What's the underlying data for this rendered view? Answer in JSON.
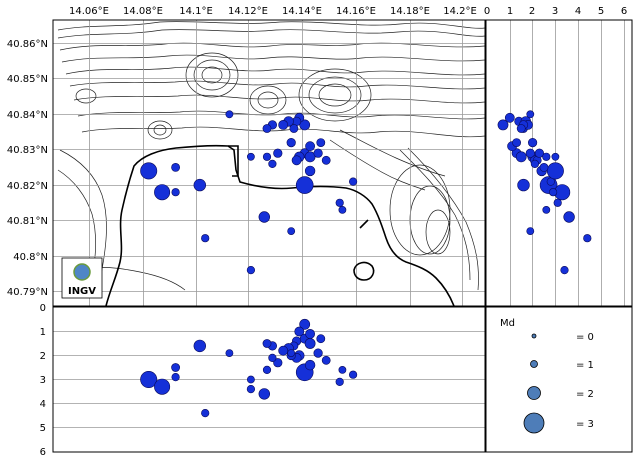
{
  "map": {
    "lon_ticks": [
      "14.06°E",
      "14.08°E",
      "14.1°E",
      "14.12°E",
      "14.14°E",
      "14.16°E",
      "14.18°E",
      "14.2°E"
    ],
    "lat_ticks": [
      "40.86°N",
      "40.85°N",
      "40.84°N",
      "40.83°N",
      "40.82°N",
      "40.81°N",
      "40.8°N",
      "40.79°N"
    ],
    "logo_text": "INGV"
  },
  "right_profile": {
    "x_ticks": [
      "0",
      "1",
      "2",
      "3",
      "4",
      "5",
      "6"
    ]
  },
  "bottom_profile": {
    "y_ticks": [
      "0",
      "1",
      "2",
      "3",
      "4",
      "5",
      "6"
    ]
  },
  "legend": {
    "title": "Md",
    "entries": [
      {
        "label": "= 0",
        "magnitude": 0
      },
      {
        "label": "= 1",
        "magnitude": 1
      },
      {
        "label": "= 2",
        "magnitude": 2
      },
      {
        "label": "= 3",
        "magnitude": 3
      }
    ]
  },
  "earthquakes": [
    {
      "lon": 14.14,
      "lat": 40.837,
      "depth": 0.7,
      "md": 1.2
    },
    {
      "lon": 14.138,
      "lat": 40.839,
      "depth": 1.0,
      "md": 1.0
    },
    {
      "lon": 14.137,
      "lat": 40.838,
      "depth": 1.4,
      "md": 0.9
    },
    {
      "lon": 14.136,
      "lat": 40.836,
      "depth": 1.6,
      "md": 0.8
    },
    {
      "lon": 14.134,
      "lat": 40.838,
      "depth": 1.7,
      "md": 1.1
    },
    {
      "lon": 14.132,
      "lat": 40.837,
      "depth": 1.8,
      "md": 1.0
    },
    {
      "lon": 14.128,
      "lat": 40.837,
      "depth": 1.6,
      "md": 0.9
    },
    {
      "lon": 14.126,
      "lat": 40.836,
      "depth": 1.5,
      "md": 0.8
    },
    {
      "lon": 14.14,
      "lat": 40.829,
      "depth": 1.3,
      "md": 1.0
    },
    {
      "lon": 14.142,
      "lat": 40.828,
      "depth": 1.5,
      "md": 1.2
    },
    {
      "lon": 14.138,
      "lat": 40.828,
      "depth": 2.0,
      "md": 1.1
    },
    {
      "lon": 14.137,
      "lat": 40.827,
      "depth": 2.1,
      "md": 1.0
    },
    {
      "lon": 14.145,
      "lat": 40.829,
      "depth": 1.9,
      "md": 0.9
    },
    {
      "lon": 14.148,
      "lat": 40.827,
      "depth": 2.2,
      "md": 0.8
    },
    {
      "lon": 14.142,
      "lat": 40.831,
      "depth": 1.1,
      "md": 1.0
    },
    {
      "lon": 14.146,
      "lat": 40.832,
      "depth": 1.3,
      "md": 0.8
    },
    {
      "lon": 14.13,
      "lat": 40.829,
      "depth": 2.3,
      "md": 0.9
    },
    {
      "lon": 14.126,
      "lat": 40.828,
      "depth": 2.6,
      "md": 0.7
    },
    {
      "lon": 14.12,
      "lat": 40.828,
      "depth": 3.0,
      "md": 0.6
    },
    {
      "lon": 14.14,
      "lat": 40.82,
      "depth": 2.7,
      "md": 2.5
    },
    {
      "lon": 14.142,
      "lat": 40.824,
      "depth": 2.4,
      "md": 1.1
    },
    {
      "lon": 14.158,
      "lat": 40.821,
      "depth": 2.8,
      "md": 0.7
    },
    {
      "lon": 14.153,
      "lat": 40.815,
      "depth": 3.1,
      "md": 0.7
    },
    {
      "lon": 14.154,
      "lat": 40.813,
      "depth": 2.6,
      "md": 0.6
    },
    {
      "lon": 14.128,
      "lat": 40.826,
      "depth": 2.1,
      "md": 0.7
    },
    {
      "lon": 14.112,
      "lat": 40.84,
      "depth": 1.9,
      "md": 0.6
    },
    {
      "lon": 14.135,
      "lat": 40.832,
      "depth": 2.0,
      "md": 0.9
    },
    {
      "lon": 14.082,
      "lat": 40.824,
      "depth": 3.0,
      "md": 2.4
    },
    {
      "lon": 14.087,
      "lat": 40.818,
      "depth": 3.3,
      "md": 2.2
    },
    {
      "lon": 14.092,
      "lat": 40.825,
      "depth": 2.5,
      "md": 0.8
    },
    {
      "lon": 14.092,
      "lat": 40.818,
      "depth": 2.9,
      "md": 0.7
    },
    {
      "lon": 14.101,
      "lat": 40.82,
      "depth": 1.6,
      "md": 1.5
    },
    {
      "lon": 14.125,
      "lat": 40.811,
      "depth": 3.6,
      "md": 1.3
    },
    {
      "lon": 14.103,
      "lat": 40.805,
      "depth": 4.4,
      "md": 0.7
    },
    {
      "lon": 14.135,
      "lat": 40.807,
      "depth": 1.9,
      "md": 0.6
    },
    {
      "lon": 14.12,
      "lat": 40.796,
      "depth": 3.4,
      "md": 0.7
    }
  ]
}
